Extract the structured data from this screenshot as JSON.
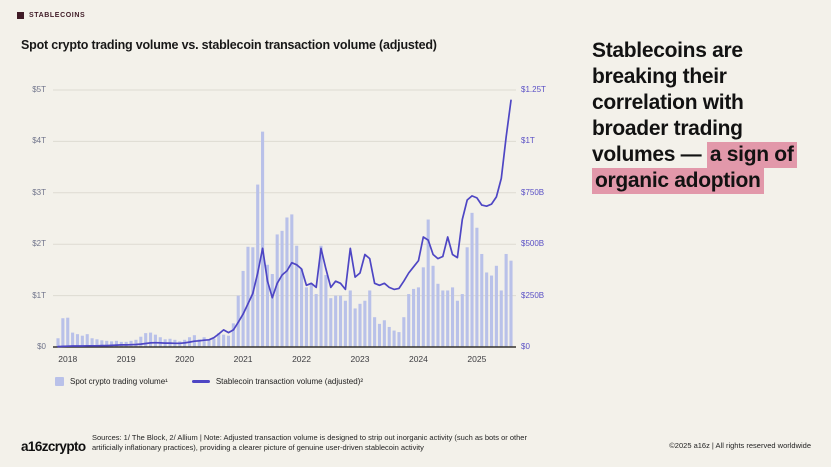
{
  "kicker": {
    "label": "STABLECOINS"
  },
  "chart": {
    "title": "Spot crypto trading volume vs. stablecoin transaction volume (adjusted)"
  },
  "headline": {
    "plain": "Stablecoins are breaking their correlation with broader trading volumes — ",
    "highlight": "a sign of organic adoption"
  },
  "footer": {
    "logo": "a16zcrypto",
    "sources": "Sources: 1/ The Block, 2/ Allium   |   Note: Adjusted transaction volume is designed to strip out inorganic activity (such as bots or other artificially inflationary practices), providing a clearer picture of genuine user-driven stablecoin activity",
    "copyright": "©2025 a16z | All rights reserved worldwide"
  },
  "colors": {
    "background": "#f3f1ea",
    "bar": "#b9c1e9",
    "line": "#4e46c4",
    "highlight": "#e298aa",
    "badge": "#3f1b26",
    "gridline": "#dedbd2",
    "baseline": "#35332e",
    "axis_left": "#70748b",
    "axis_right": "#5a50c6"
  },
  "chart_data": {
    "type": "bar+line",
    "title": "Spot crypto trading volume vs. stablecoin transaction volume (adjusted)",
    "grid": "horizontal-only",
    "legend_position": "bottom-left",
    "legend": {
      "bars": "Spot crypto trading volume¹",
      "line": "Stablecoin transaction volume (adjusted)²"
    },
    "left_axis": {
      "title": "Spot crypto trading volume (USD)",
      "max": 5,
      "unit": "trillions USD",
      "ticks": [
        {
          "label": "$5T",
          "value": 5
        },
        {
          "label": "$4T",
          "value": 4
        },
        {
          "label": "$3T",
          "value": 3
        },
        {
          "label": "$2T",
          "value": 2
        },
        {
          "label": "$1T",
          "value": 1
        },
        {
          "label": "$0",
          "value": 0
        }
      ]
    },
    "right_axis": {
      "title": "Stablecoin transaction volume (USD)",
      "max": 1250,
      "unit": "billions USD",
      "ticks": [
        {
          "label": "$1.25T",
          "value": 1250
        },
        {
          "label": "$1T",
          "value": 1000
        },
        {
          "label": "$750B",
          "value": 750
        },
        {
          "label": "$500B",
          "value": 500
        },
        {
          "label": "$250B",
          "value": 250
        },
        {
          "label": "$0",
          "value": 0
        }
      ]
    },
    "x_ticks": [
      "2018",
      "2019",
      "2020",
      "2021",
      "2022",
      "2023",
      "2024",
      "2025"
    ],
    "months": [
      "2017-11",
      "2017-12",
      "2018-01",
      "2018-02",
      "2018-03",
      "2018-04",
      "2018-05",
      "2018-06",
      "2018-07",
      "2018-08",
      "2018-09",
      "2018-10",
      "2018-11",
      "2018-12",
      "2019-01",
      "2019-02",
      "2019-03",
      "2019-04",
      "2019-05",
      "2019-06",
      "2019-07",
      "2019-08",
      "2019-09",
      "2019-10",
      "2019-11",
      "2019-12",
      "2020-01",
      "2020-02",
      "2020-03",
      "2020-04",
      "2020-05",
      "2020-06",
      "2020-07",
      "2020-08",
      "2020-09",
      "2020-10",
      "2020-11",
      "2020-12",
      "2021-01",
      "2021-02",
      "2021-03",
      "2021-04",
      "2021-05",
      "2021-06",
      "2021-07",
      "2021-08",
      "2021-09",
      "2021-10",
      "2021-11",
      "2021-12",
      "2022-01",
      "2022-02",
      "2022-03",
      "2022-04",
      "2022-05",
      "2022-06",
      "2022-07",
      "2022-08",
      "2022-09",
      "2022-10",
      "2022-11",
      "2022-12",
      "2023-01",
      "2023-02",
      "2023-03",
      "2023-04",
      "2023-05",
      "2023-06",
      "2023-07",
      "2023-08",
      "2023-09",
      "2023-10",
      "2023-11",
      "2023-12",
      "2024-01",
      "2024-02",
      "2024-03",
      "2024-04",
      "2024-05",
      "2024-06",
      "2024-07",
      "2024-08",
      "2024-09",
      "2024-10",
      "2024-11",
      "2024-12",
      "2025-01",
      "2025-02",
      "2025-03",
      "2025-04",
      "2025-05",
      "2025-06",
      "2025-07",
      "2025-08"
    ],
    "spot_volume_trillions": [
      0.17,
      0.56,
      0.57,
      0.28,
      0.25,
      0.22,
      0.25,
      0.17,
      0.15,
      0.13,
      0.12,
      0.11,
      0.12,
      0.1,
      0.1,
      0.12,
      0.14,
      0.2,
      0.27,
      0.28,
      0.24,
      0.19,
      0.15,
      0.16,
      0.14,
      0.11,
      0.14,
      0.19,
      0.23,
      0.15,
      0.19,
      0.14,
      0.16,
      0.27,
      0.24,
      0.22,
      0.46,
      1.0,
      1.48,
      1.95,
      1.94,
      3.16,
      4.19,
      1.6,
      1.42,
      2.19,
      2.26,
      2.52,
      2.58,
      1.97,
      1.52,
      1.16,
      1.23,
      1.03,
      1.97,
      1.4,
      0.95,
      1.0,
      1.0,
      0.9,
      1.1,
      0.75,
      0.84,
      0.9,
      1.1,
      0.58,
      0.45,
      0.52,
      0.39,
      0.32,
      0.29,
      0.58,
      1.03,
      1.13,
      1.16,
      1.55,
      2.48,
      1.58,
      1.23,
      1.1,
      1.1,
      1.16,
      0.9,
      1.03,
      1.94,
      2.61,
      2.32,
      1.81,
      1.45,
      1.39,
      1.58,
      1.1,
      1.81,
      1.68
    ],
    "stablecoin_volume_billions": [
      2,
      3,
      4,
      5,
      5,
      5,
      6,
      6,
      6,
      7,
      7,
      8,
      9,
      10,
      10,
      11,
      12,
      14,
      17,
      20,
      21,
      20,
      19,
      19,
      18,
      18,
      20,
      24,
      28,
      30,
      33,
      35,
      45,
      63,
      83,
      70,
      83,
      120,
      160,
      210,
      260,
      360,
      480,
      320,
      240,
      310,
      350,
      370,
      410,
      400,
      380,
      300,
      310,
      290,
      480,
      380,
      290,
      320,
      310,
      280,
      480,
      340,
      360,
      450,
      430,
      310,
      300,
      310,
      290,
      280,
      285,
      320,
      360,
      390,
      420,
      535,
      520,
      450,
      430,
      440,
      535,
      450,
      435,
      620,
      715,
      735,
      725,
      690,
      685,
      695,
      730,
      820,
      1020,
      1200
    ]
  }
}
